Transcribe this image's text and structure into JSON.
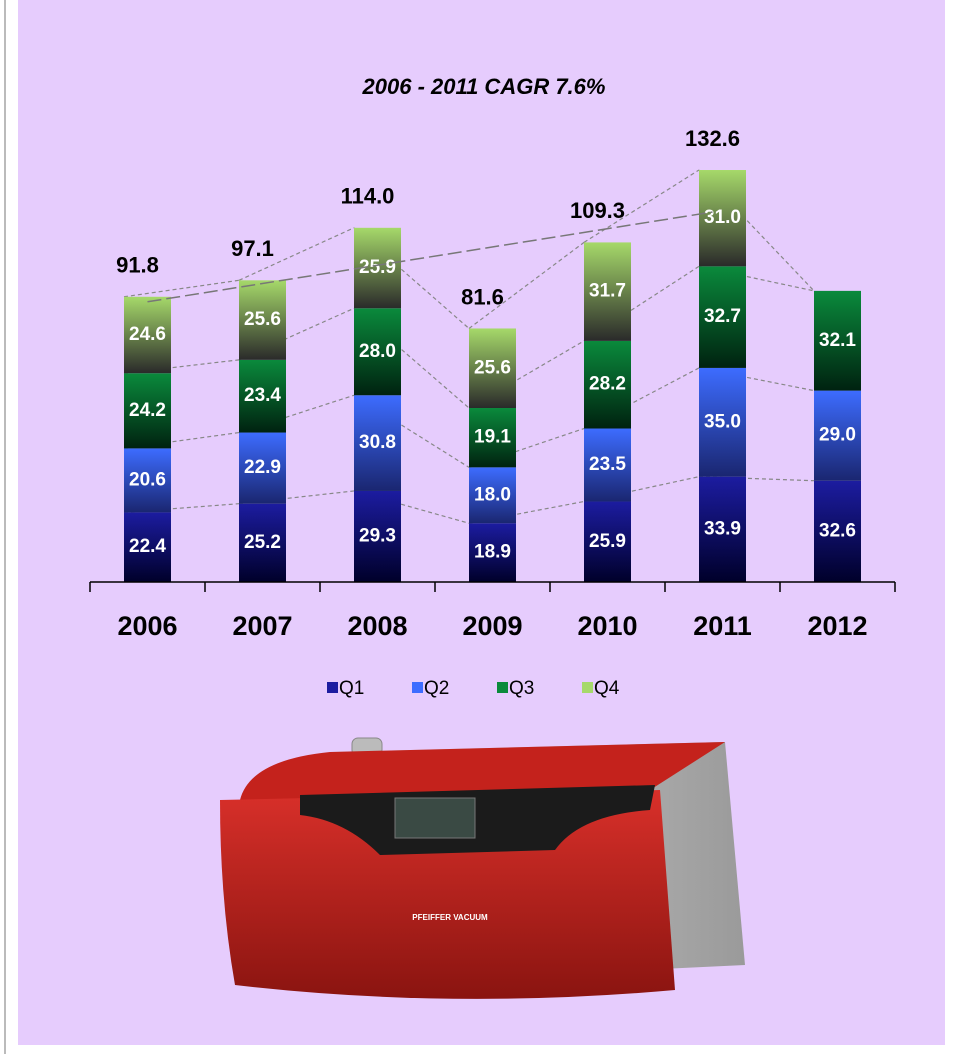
{
  "chart_data": {
    "type": "stacked-bar",
    "title": "2006 - 2011 CAGR 7.6%",
    "categories": [
      "2006",
      "2007",
      "2008",
      "2009",
      "2010",
      "2011",
      "2012"
    ],
    "series": [
      {
        "name": "Q1",
        "color": "#1c1ca0",
        "values": [
          22.4,
          25.2,
          29.3,
          18.9,
          25.9,
          33.9,
          32.6
        ],
        "value_labels": [
          "22.4",
          "25.2",
          "29.3",
          "18.9",
          "25.9",
          "33.9",
          "32.6"
        ]
      },
      {
        "name": "Q2",
        "color": "#3d6cff",
        "values": [
          20.6,
          22.9,
          30.8,
          18.0,
          23.5,
          35.0,
          29.0
        ],
        "value_labels": [
          "20.6",
          "22.9",
          "30.8",
          "18.0",
          "23.5",
          "35.0",
          "29.0"
        ]
      },
      {
        "name": "Q3",
        "color": "#0a8a3c",
        "values": [
          24.2,
          23.4,
          28.0,
          19.1,
          28.2,
          32.7,
          32.1
        ],
        "value_labels": [
          "24.2",
          "23.4",
          "28.0",
          "19.1",
          "28.2",
          "32.7",
          "32.1"
        ]
      },
      {
        "name": "Q4",
        "color": "#a6d96a",
        "values": [
          24.6,
          25.6,
          25.9,
          25.6,
          31.7,
          31.0,
          null
        ],
        "value_labels": [
          "24.6",
          "25.6",
          "25.9",
          "25.6",
          "31.7",
          "31.0",
          null
        ]
      }
    ],
    "totals": [
      91.8,
      97.1,
      114.0,
      81.6,
      109.3,
      132.6,
      null
    ],
    "total_labels": [
      "91.8",
      "97.1",
      "114.0",
      "81.6",
      "109.3",
      "132.6",
      null
    ]
  },
  "product_label": "PFEIFFER VACUUM"
}
